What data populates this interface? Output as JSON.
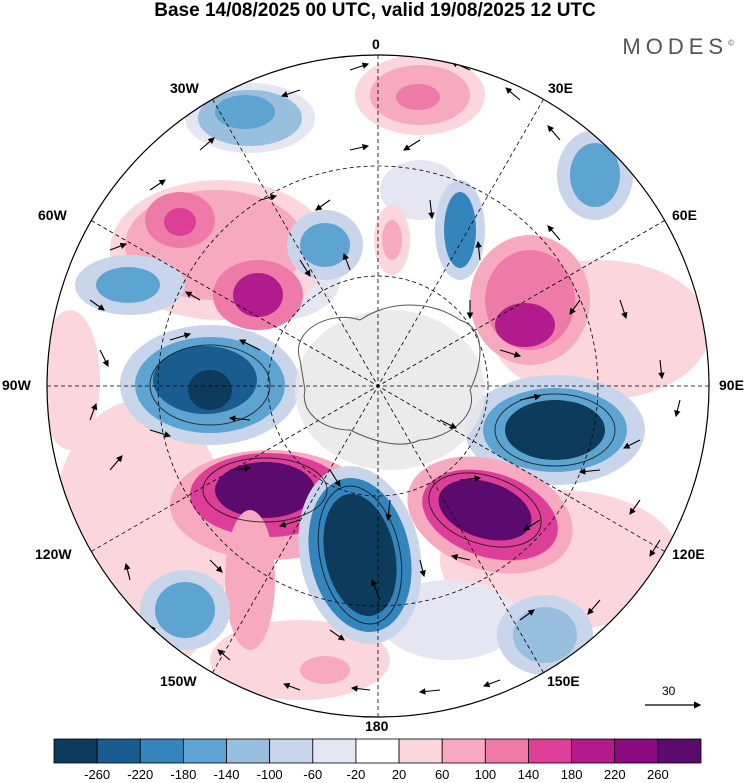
{
  "title": "Base 14/08/2025 00 UTC, valid 19/08/2025 12 UTC",
  "brand": "MODES",
  "brand_mark": "©",
  "lon_labels": {
    "l0": "0",
    "l30e": "30E",
    "l60e": "60E",
    "l90e": "90E",
    "l120e": "120E",
    "l150e": "150E",
    "l180": "180",
    "l150w": "150W",
    "l120w": "120W",
    "l90w": "90W",
    "l60w": "60W",
    "l30w": "30W"
  },
  "reference_vector": "30",
  "colorbar": {
    "colors": [
      "#0d3b5c",
      "#195c8f",
      "#3385bb",
      "#5ea4d1",
      "#98bfde",
      "#c8d5ea",
      "#e6e6f2",
      "#ffffff",
      "#fbd6dc",
      "#f6a9bf",
      "#ee7aa8",
      "#dd3f98",
      "#b21b8c",
      "#8a0c80",
      "#5b0a6e"
    ],
    "labels": [
      "-260",
      "-220",
      "-180",
      "-140",
      "-100",
      "-60",
      "-20",
      "20",
      "60",
      "100",
      "140",
      "180",
      "220",
      "260"
    ]
  }
}
